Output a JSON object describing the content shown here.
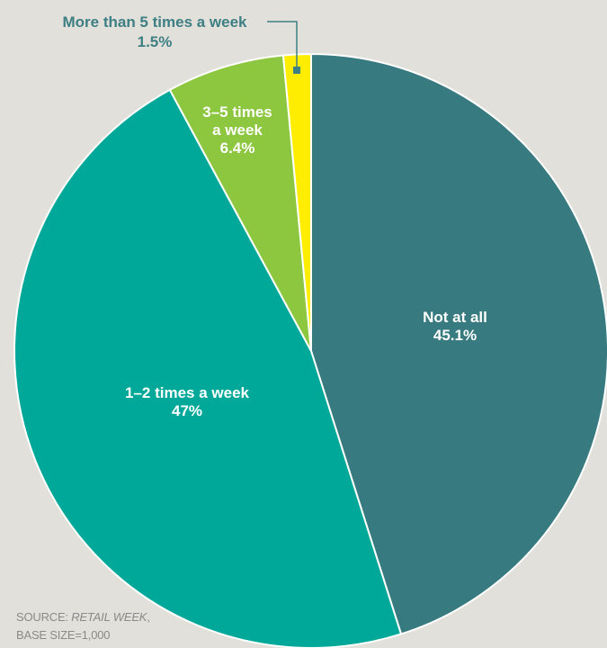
{
  "chart_data": {
    "type": "pie",
    "categories": [
      "Not at all",
      "1–2 times a week",
      "3–5 times a week",
      "More than 5 times a week"
    ],
    "values": [
      45.1,
      47,
      6.4,
      1.5
    ],
    "value_labels": [
      "45.1%",
      "47%",
      "6.4%",
      "1.5%"
    ],
    "slices": [
      {
        "label_lines": [
          "Not at all"
        ],
        "value_label": "45.1%",
        "value": 45.1,
        "color": "#377a80"
      },
      {
        "label_lines": [
          "1–2 times a week"
        ],
        "value_label": "47%",
        "value": 47,
        "color": "#00a89a"
      },
      {
        "label_lines": [
          "3–5 times",
          "a week"
        ],
        "value_label": "6.4%",
        "value": 6.4,
        "color": "#8dc63f"
      },
      {
        "label_lines": [
          "More than 5 times a week"
        ],
        "value_label": "1.5%",
        "value": 1.5,
        "color": "#ffed00"
      }
    ],
    "legend": "none"
  },
  "source": {
    "prefix": "SOURCE: ",
    "publication": "RETAIL WEEK",
    "suffix": ",",
    "base": "BASE SIZE=1,000"
  },
  "colors": {
    "background": "#e2e0da",
    "callout": "#3d7f83"
  }
}
